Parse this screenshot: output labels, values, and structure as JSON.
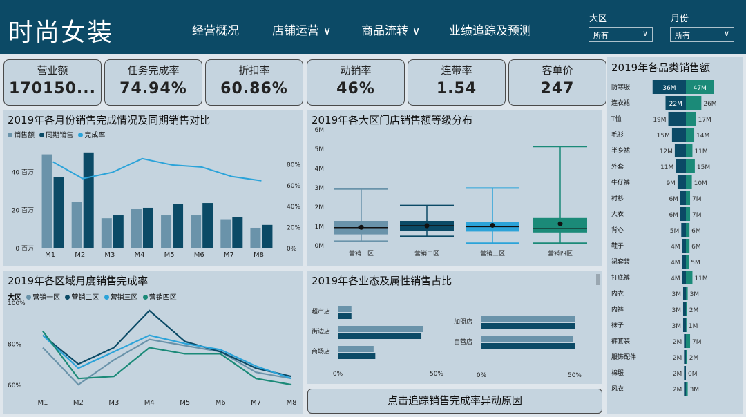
{
  "header": {
    "brand": "时尚女装",
    "nav": [
      "经营概况",
      "店铺运营 ∨",
      "商品流转 ∨",
      "业绩追踪及预测"
    ],
    "filters": [
      {
        "label": "大区",
        "value": "所有"
      },
      {
        "label": "月份",
        "value": "所有"
      }
    ]
  },
  "kpis": [
    {
      "label": "营业额",
      "value": "170150..."
    },
    {
      "label": "任务完成率",
      "value": "74.94%"
    },
    {
      "label": "折扣率",
      "value": "60.86%"
    },
    {
      "label": "动销率",
      "value": "46%"
    },
    {
      "label": "连带率",
      "value": "1.54"
    },
    {
      "label": "客单价",
      "value": "247"
    }
  ],
  "colors": {
    "header": "#0c4a66",
    "panel": "#c5d4df",
    "s1": "#6a93aa",
    "s2": "#0b4a66",
    "s3": "#2ba3d9",
    "s4": "#1b8a78"
  },
  "chart_data": [
    {
      "type": "bar",
      "title": "2019年各月份销售完成情况及同期销售对比",
      "categories": [
        "M1",
        "M2",
        "M3",
        "M4",
        "M5",
        "M6",
        "M7",
        "M8"
      ],
      "series": [
        {
          "name": "销售额",
          "values": [
            49,
            24,
            15.5,
            20.5,
            17,
            17,
            15,
            10.5
          ]
        },
        {
          "name": "同期销售",
          "values": [
            37,
            50,
            17,
            21,
            23,
            23.5,
            16,
            12
          ]
        },
        {
          "name": "完成率",
          "values": [
            82,
            66,
            72,
            85,
            79,
            77,
            68,
            64
          ]
        }
      ],
      "y_ticks": [
        "0 百万",
        "20 百万",
        "40 百万"
      ],
      "y2_ticks": [
        "0%",
        "20%",
        "40%",
        "60%",
        "80%"
      ]
    },
    {
      "type": "box",
      "title": "2019年各大区门店销售额等级分布",
      "categories": [
        "营销一区",
        "营销二区",
        "营销三区",
        "营销四区"
      ],
      "y_ticks": [
        "0M",
        "1M",
        "2M",
        "3M",
        "4M",
        "5M",
        "6M"
      ],
      "boxes": [
        {
          "min": 0.2,
          "q1": 0.55,
          "median": 0.9,
          "q3": 1.25,
          "max": 2.9,
          "mean": 0.92
        },
        {
          "min": 0.45,
          "q1": 0.75,
          "median": 1.0,
          "q3": 1.25,
          "max": 2.05,
          "mean": 1.0
        },
        {
          "min": 0.1,
          "q1": 0.7,
          "median": 0.95,
          "q3": 1.2,
          "max": 2.95,
          "mean": 1.02
        },
        {
          "min": 0.1,
          "q1": 0.65,
          "median": 0.85,
          "q3": 1.4,
          "max": 5.1,
          "mean": 1.1
        }
      ]
    },
    {
      "type": "line",
      "title": "2019年各区域月度销售完成率",
      "legend_title": "大区",
      "categories": [
        "M1",
        "M2",
        "M3",
        "M4",
        "M5",
        "M6",
        "M7",
        "M8"
      ],
      "y_ticks": [
        "60%",
        "80%",
        "100%"
      ],
      "series": [
        {
          "name": "营销一区",
          "values": [
            78,
            60,
            72,
            82,
            79,
            76,
            66,
            63
          ]
        },
        {
          "name": "营销二区",
          "values": [
            84,
            70,
            78,
            96,
            81,
            76,
            68,
            64
          ]
        },
        {
          "name": "营销三区",
          "values": [
            84,
            68,
            76,
            84,
            80,
            77,
            69,
            63
          ]
        },
        {
          "name": "营销四区",
          "values": [
            86,
            63,
            64,
            78,
            75,
            75,
            63,
            60
          ]
        }
      ]
    },
    {
      "type": "bar",
      "title": "2019年各业态及属性销售占比",
      "left": {
        "categories": [
          "超市店",
          "街边店",
          "商场店"
        ],
        "a": [
          8,
          50,
          21
        ],
        "b": [
          8,
          49,
          22
        ],
        "ticks": [
          "0%",
          "50%"
        ]
      },
      "right": {
        "categories": [
          "加盟店",
          "自营店"
        ],
        "a": [
          50,
          49
        ],
        "b": [
          50,
          50
        ],
        "ticks": [
          "0%",
          "50%"
        ]
      }
    },
    {
      "type": "bar",
      "title": "2019年各品类销售额",
      "categories": [
        "防寒服",
        "连衣裙",
        "T恤",
        "毛衫",
        "半身裙",
        "外套",
        "牛仔裤",
        "衬衫",
        "大衣",
        "背心",
        "鞋子",
        "裙套装",
        "打底裤",
        "内衣",
        "内裤",
        "袜子",
        "裤套装",
        "服饰配件",
        "棉服",
        "风衣"
      ],
      "left_values": [
        36,
        22,
        19,
        15,
        12,
        11,
        9,
        6,
        6,
        5,
        4,
        4,
        4,
        3,
        3,
        3,
        2,
        2,
        2,
        2
      ],
      "right_values": [
        47,
        26,
        17,
        14,
        11,
        15,
        10,
        7,
        7,
        6,
        6,
        5,
        11,
        3,
        2,
        1,
        7,
        2,
        0,
        3
      ],
      "left_labels": [
        "36M",
        "22M",
        "19M",
        "15M",
        "12M",
        "11M",
        "9M",
        "6M",
        "6M",
        "5M",
        "4M",
        "4M",
        "4M",
        "3M",
        "3M",
        "3M",
        "2M",
        "2M",
        "2M",
        "2M"
      ],
      "right_labels": [
        "47M",
        "26M",
        "17M",
        "14M",
        "11M",
        "15M",
        "10M",
        "7M",
        "7M",
        "6M",
        "6M",
        "5M",
        "11M",
        "3M",
        "2M",
        "1M",
        "7M",
        "2M",
        "0M",
        "3M"
      ]
    }
  ],
  "button_label": "点击追踪销售完成率异动原因"
}
